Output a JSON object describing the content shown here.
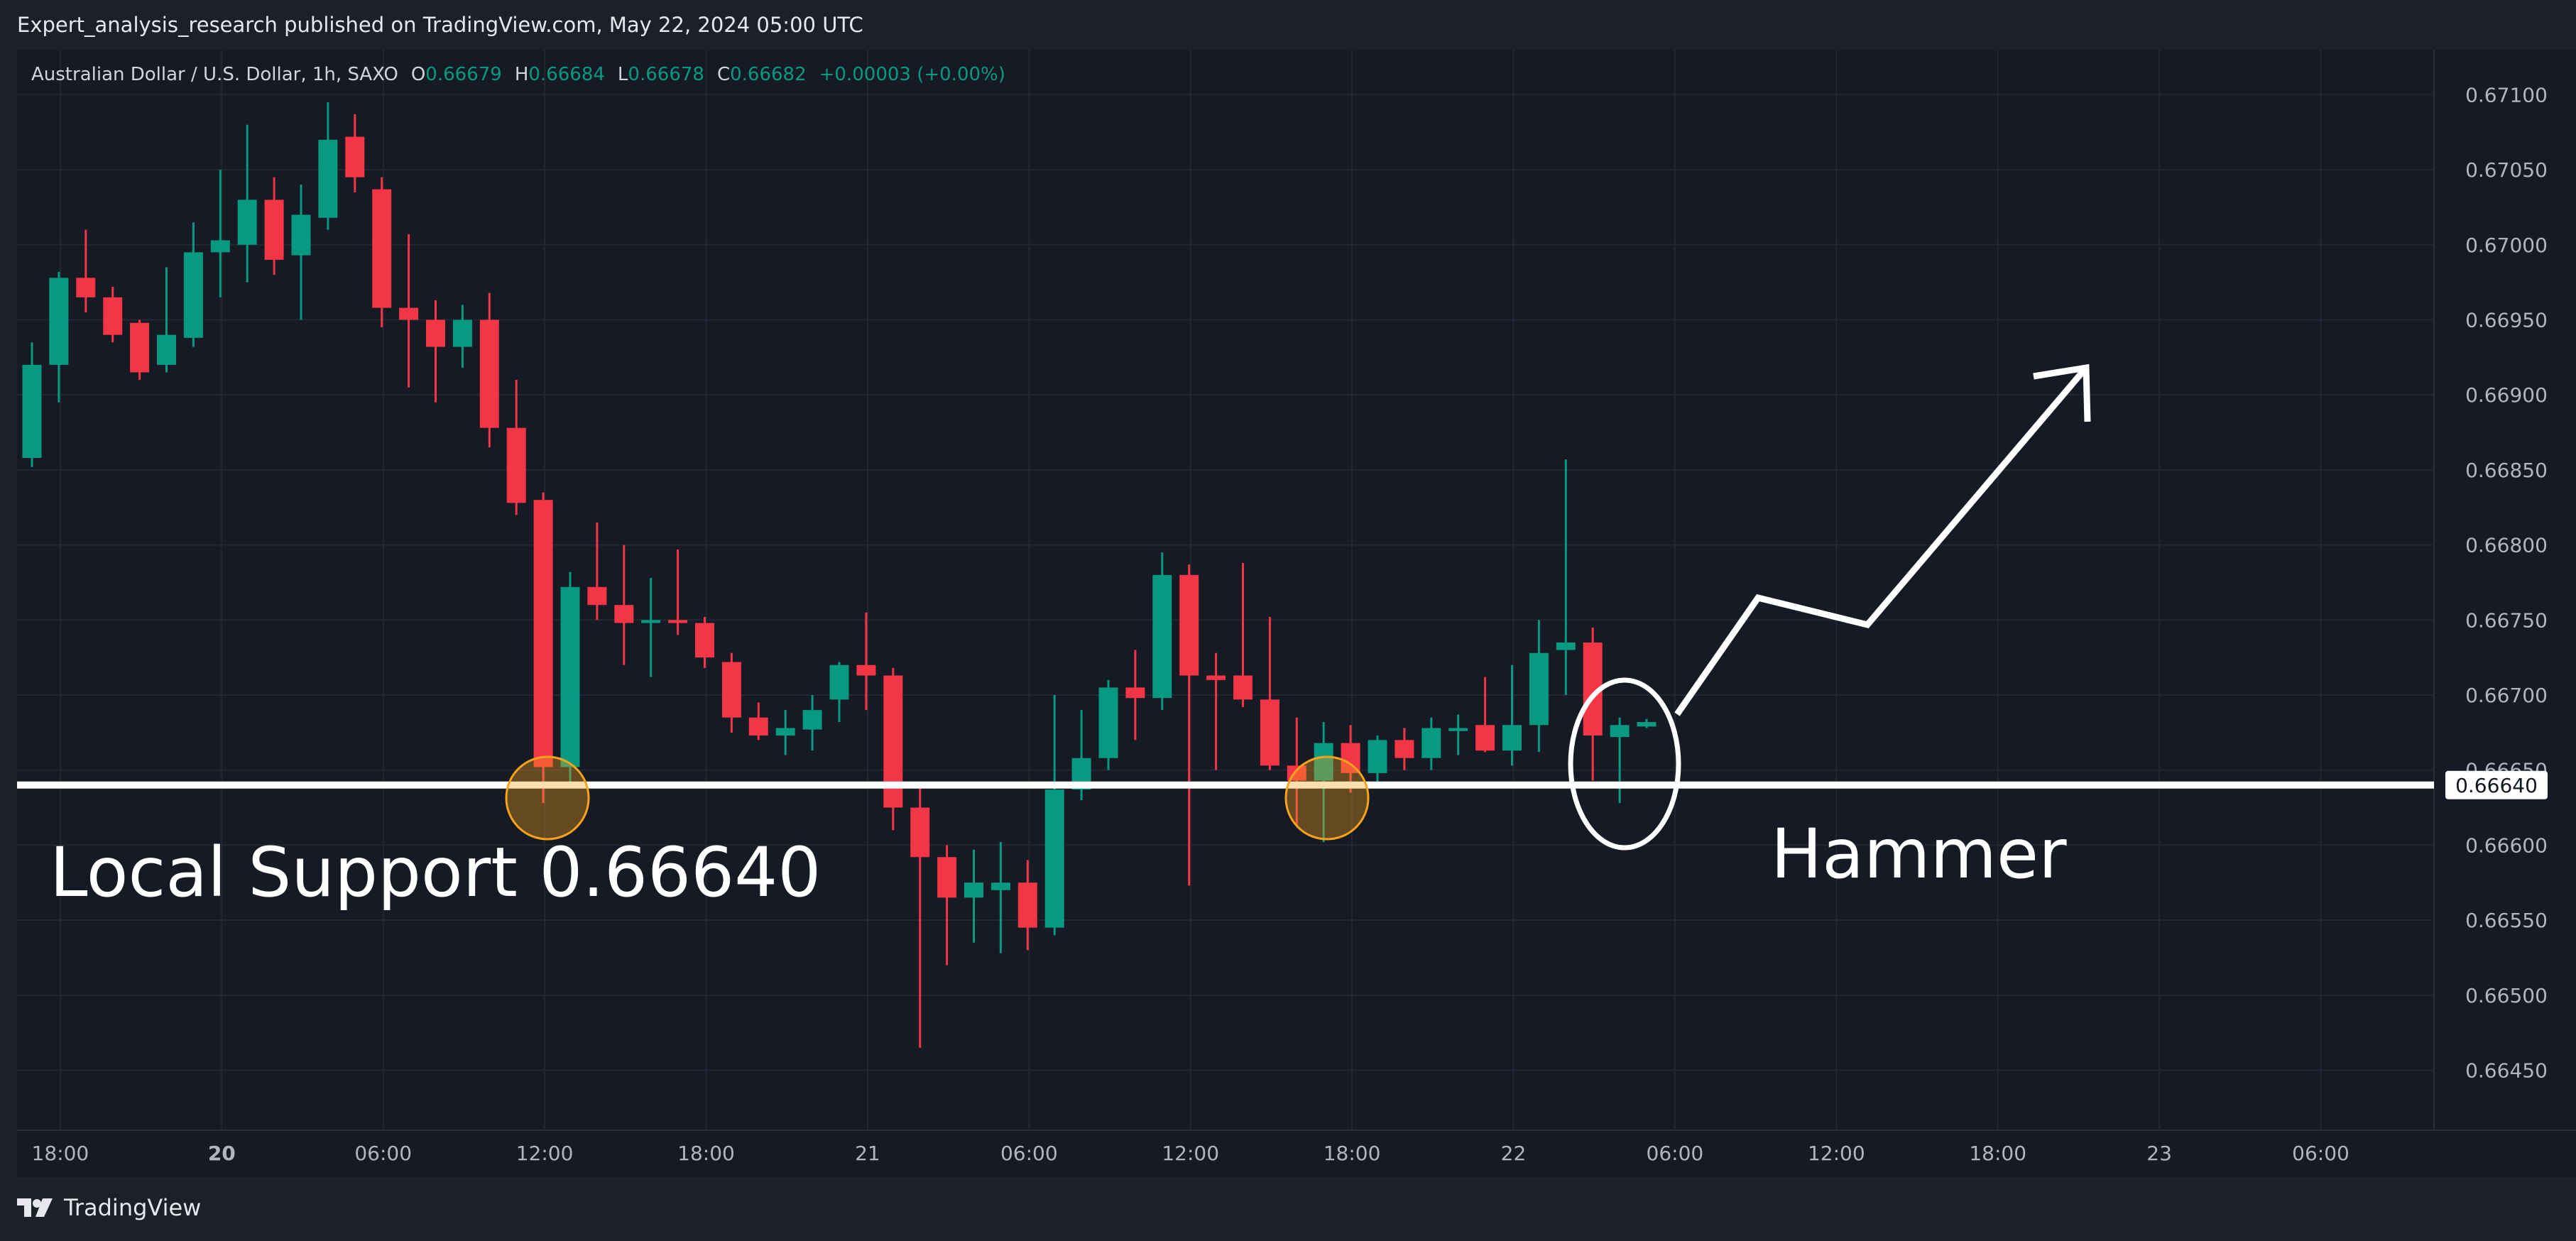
{
  "header": {
    "published": "Expert_analysis_research published on TradingView.com, May 22, 2024 05:00 UTC"
  },
  "legend": {
    "symbol": "Australian Dollar / U.S. Dollar, 1h, SAXO",
    "o_label": "O",
    "o_value": "0.66679",
    "h_label": "H",
    "h_value": "0.66684",
    "l_label": "L",
    "l_value": "0.66678",
    "c_label": "C",
    "c_value": "0.66682",
    "change": "+0.00003 (+0.00%)"
  },
  "annotations": {
    "support_text": "Local Support 0.66640",
    "hammer_text": "Hammer",
    "price_tag": "0.66640"
  },
  "footer": {
    "brand": "TradingView"
  },
  "colors": {
    "background": "#161a25",
    "up": "#089981",
    "down": "#f23645",
    "grid": "#232733",
    "annotation": "#ffffff",
    "highlight": "#f7a21b"
  },
  "chart_data": {
    "type": "candlestick",
    "symbol": "AUDUSD",
    "interval": "1h",
    "ylim": [
      0.6641,
      0.6713
    ],
    "y_ticks": [
      "0.67100",
      "0.67050",
      "0.67000",
      "0.66950",
      "0.66900",
      "0.66850",
      "0.66800",
      "0.66750",
      "0.66700",
      "0.66650",
      "0.66600",
      "0.66550",
      "0.66500",
      "0.66450"
    ],
    "x_ticks": [
      {
        "label": "18:00",
        "index": 1
      },
      {
        "label": "20",
        "index": 7,
        "bold": true
      },
      {
        "label": "06:00",
        "index": 13
      },
      {
        "label": "12:00",
        "index": 19
      },
      {
        "label": "18:00",
        "index": 25
      },
      {
        "label": "21",
        "index": 31
      },
      {
        "label": "06:00",
        "index": 37
      },
      {
        "label": "12:00",
        "index": 43
      },
      {
        "label": "18:00",
        "index": 49
      },
      {
        "label": "22",
        "index": 55
      },
      {
        "label": "06:00",
        "index": 61
      },
      {
        "label": "12:00",
        "index": 67
      },
      {
        "label": "18:00",
        "index": 73
      },
      {
        "label": "23",
        "index": 79
      },
      {
        "label": "06:00",
        "index": 85
      }
    ],
    "candles": [
      {
        "o": 0.66858,
        "h": 0.66935,
        "l": 0.66852,
        "c": 0.6692
      },
      {
        "o": 0.6692,
        "h": 0.66982,
        "l": 0.66895,
        "c": 0.66978
      },
      {
        "o": 0.66978,
        "h": 0.6701,
        "l": 0.66955,
        "c": 0.66965
      },
      {
        "o": 0.66965,
        "h": 0.66972,
        "l": 0.66935,
        "c": 0.6694
      },
      {
        "o": 0.66948,
        "h": 0.6695,
        "l": 0.6691,
        "c": 0.66915
      },
      {
        "o": 0.6692,
        "h": 0.66985,
        "l": 0.66915,
        "c": 0.6694
      },
      {
        "o": 0.66938,
        "h": 0.67015,
        "l": 0.66932,
        "c": 0.66995
      },
      {
        "o": 0.66995,
        "h": 0.6705,
        "l": 0.66965,
        "c": 0.67003
      },
      {
        "o": 0.67,
        "h": 0.6708,
        "l": 0.66975,
        "c": 0.6703
      },
      {
        "o": 0.6703,
        "h": 0.67045,
        "l": 0.6698,
        "c": 0.6699
      },
      {
        "o": 0.66993,
        "h": 0.6704,
        "l": 0.6695,
        "c": 0.6702
      },
      {
        "o": 0.67018,
        "h": 0.67095,
        "l": 0.6701,
        "c": 0.6707
      },
      {
        "o": 0.67072,
        "h": 0.67087,
        "l": 0.67035,
        "c": 0.67045
      },
      {
        "o": 0.67037,
        "h": 0.67045,
        "l": 0.66945,
        "c": 0.66958
      },
      {
        "o": 0.66958,
        "h": 0.67007,
        "l": 0.66905,
        "c": 0.6695
      },
      {
        "o": 0.6695,
        "h": 0.66963,
        "l": 0.66895,
        "c": 0.66932
      },
      {
        "o": 0.66932,
        "h": 0.6696,
        "l": 0.66918,
        "c": 0.6695
      },
      {
        "o": 0.6695,
        "h": 0.66968,
        "l": 0.66865,
        "c": 0.66878
      },
      {
        "o": 0.66878,
        "h": 0.6691,
        "l": 0.6682,
        "c": 0.66828
      },
      {
        "o": 0.6683,
        "h": 0.66835,
        "l": 0.66628,
        "c": 0.66652
      },
      {
        "o": 0.66652,
        "h": 0.66782,
        "l": 0.6664,
        "c": 0.66772
      },
      {
        "o": 0.66772,
        "h": 0.66815,
        "l": 0.6675,
        "c": 0.6676
      },
      {
        "o": 0.6676,
        "h": 0.668,
        "l": 0.6672,
        "c": 0.66748
      },
      {
        "o": 0.66748,
        "h": 0.66778,
        "l": 0.66712,
        "c": 0.6675
      },
      {
        "o": 0.6675,
        "h": 0.66797,
        "l": 0.6674,
        "c": 0.66748
      },
      {
        "o": 0.66748,
        "h": 0.66752,
        "l": 0.66718,
        "c": 0.66725
      },
      {
        "o": 0.66722,
        "h": 0.66728,
        "l": 0.66675,
        "c": 0.66685
      },
      {
        "o": 0.66685,
        "h": 0.66695,
        "l": 0.6667,
        "c": 0.66673
      },
      {
        "o": 0.66673,
        "h": 0.6669,
        "l": 0.6666,
        "c": 0.66678
      },
      {
        "o": 0.66677,
        "h": 0.667,
        "l": 0.66663,
        "c": 0.6669
      },
      {
        "o": 0.66697,
        "h": 0.66722,
        "l": 0.66682,
        "c": 0.6672
      },
      {
        "o": 0.6672,
        "h": 0.66755,
        "l": 0.6669,
        "c": 0.66713
      },
      {
        "o": 0.66713,
        "h": 0.66718,
        "l": 0.6661,
        "c": 0.66625
      },
      {
        "o": 0.66625,
        "h": 0.6664,
        "l": 0.66465,
        "c": 0.66592
      },
      {
        "o": 0.66592,
        "h": 0.666,
        "l": 0.6652,
        "c": 0.66565
      },
      {
        "o": 0.66565,
        "h": 0.66597,
        "l": 0.66535,
        "c": 0.66575
      },
      {
        "o": 0.6657,
        "h": 0.66602,
        "l": 0.66528,
        "c": 0.66575
      },
      {
        "o": 0.66575,
        "h": 0.6659,
        "l": 0.6653,
        "c": 0.66545
      },
      {
        "o": 0.66545,
        "h": 0.667,
        "l": 0.6654,
        "c": 0.66637
      },
      {
        "o": 0.66637,
        "h": 0.6669,
        "l": 0.6663,
        "c": 0.66658
      },
      {
        "o": 0.66658,
        "h": 0.6671,
        "l": 0.6665,
        "c": 0.66705
      },
      {
        "o": 0.66705,
        "h": 0.6673,
        "l": 0.6667,
        "c": 0.66698
      },
      {
        "o": 0.66698,
        "h": 0.66795,
        "l": 0.6669,
        "c": 0.6678
      },
      {
        "o": 0.6678,
        "h": 0.66787,
        "l": 0.66573,
        "c": 0.66713
      },
      {
        "o": 0.66713,
        "h": 0.66728,
        "l": 0.6665,
        "c": 0.6671
      },
      {
        "o": 0.66713,
        "h": 0.66788,
        "l": 0.66692,
        "c": 0.66697
      },
      {
        "o": 0.66697,
        "h": 0.66752,
        "l": 0.6665,
        "c": 0.66653
      },
      {
        "o": 0.66653,
        "h": 0.66685,
        "l": 0.66613,
        "c": 0.66643
      },
      {
        "o": 0.66643,
        "h": 0.66682,
        "l": 0.66602,
        "c": 0.66668
      },
      {
        "o": 0.66668,
        "h": 0.6668,
        "l": 0.66635,
        "c": 0.66648
      },
      {
        "o": 0.66648,
        "h": 0.66673,
        "l": 0.6664,
        "c": 0.6667
      },
      {
        "o": 0.6667,
        "h": 0.66678,
        "l": 0.6665,
        "c": 0.66658
      },
      {
        "o": 0.66658,
        "h": 0.66685,
        "l": 0.6665,
        "c": 0.66678
      },
      {
        "o": 0.66676,
        "h": 0.66687,
        "l": 0.6666,
        "c": 0.66678
      },
      {
        "o": 0.6668,
        "h": 0.66712,
        "l": 0.66662,
        "c": 0.66663
      },
      {
        "o": 0.66663,
        "h": 0.6672,
        "l": 0.66653,
        "c": 0.6668
      },
      {
        "o": 0.6668,
        "h": 0.6675,
        "l": 0.66662,
        "c": 0.66728
      },
      {
        "o": 0.6673,
        "h": 0.66857,
        "l": 0.667,
        "c": 0.66735
      },
      {
        "o": 0.66735,
        "h": 0.66745,
        "l": 0.66643,
        "c": 0.66673
      },
      {
        "o": 0.66672,
        "h": 0.66685,
        "l": 0.66628,
        "c": 0.6668
      },
      {
        "o": 0.66679,
        "h": 0.66684,
        "l": 0.66678,
        "c": 0.66682
      }
    ],
    "horizontal_line": {
      "price": 0.6664,
      "label": "Local Support 0.66640"
    }
  }
}
